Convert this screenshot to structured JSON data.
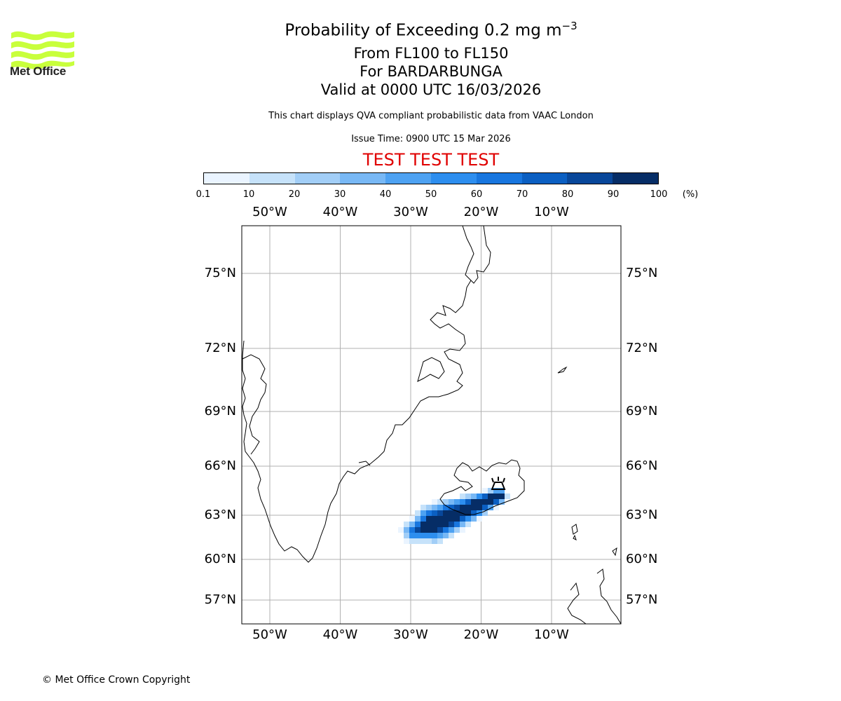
{
  "header": {
    "title": "Probability of Exceeding 0.2 mg m",
    "title_superscript": "−3",
    "level_range": "From FL100 to FL150",
    "volcano_line": "For BARDARBUNGA",
    "valid_time": "Valid at 0000 UTC 16/03/2026",
    "description": "This chart displays QVA compliant probabilistic data from VAAC London",
    "issue_time": "Issue Time: 0900 UTC 15 Mar 2026",
    "test_banner": "TEST TEST TEST"
  },
  "logo": {
    "text": "Met Office",
    "color": "#c8ff3c"
  },
  "colorbar": {
    "tick_labels": [
      "0.1",
      "10",
      "20",
      "30",
      "40",
      "50",
      "60",
      "70",
      "80",
      "90",
      "100"
    ],
    "unit_label": "(%)",
    "colors": [
      "#eaf4ff",
      "#c6e2fa",
      "#a2cef7",
      "#78b8f5",
      "#4ea2f2",
      "#2d8eef",
      "#1876df",
      "#0b5fc2",
      "#08479a",
      "#062d66"
    ]
  },
  "map": {
    "lon_labels": [
      "50°W",
      "40°W",
      "30°W",
      "20°W",
      "10°W"
    ],
    "lat_labels": [
      "75°N",
      "72°N",
      "69°N",
      "66°N",
      "63°N",
      "60°N",
      "57°N"
    ],
    "lon_values": [
      -50,
      -40,
      -30,
      -20,
      -10
    ],
    "lat_values": [
      75,
      72,
      69,
      66,
      63,
      60,
      57
    ],
    "volcano": "BARDARBUNGA",
    "volcano_lon": -17.5,
    "volcano_lat": 64.6
  },
  "footer": {
    "copyright": "© Met Office Crown Copyright"
  }
}
